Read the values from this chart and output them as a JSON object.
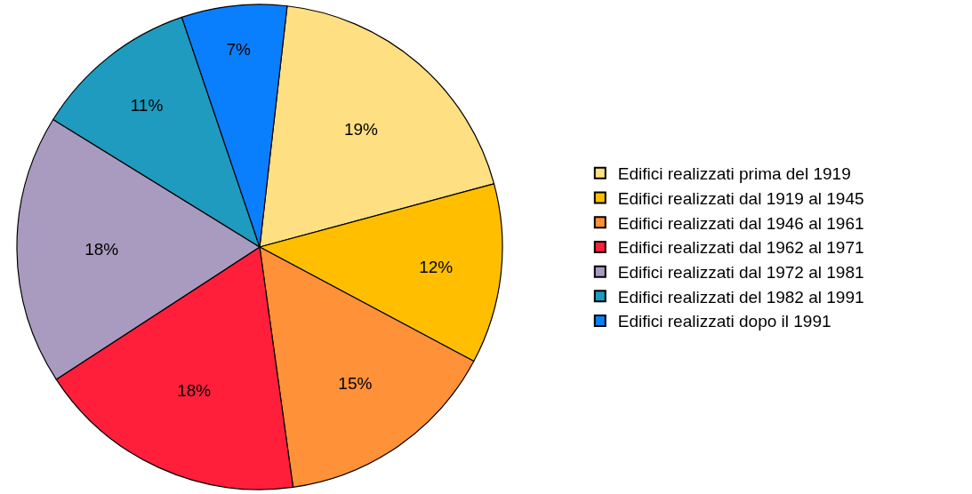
{
  "chart_data": {
    "type": "pie",
    "categories": [
      "Edifici realizzati prima del 1919",
      "Edifici realizzati dal 1919 al 1945",
      "Edifici realizzati dal 1946 al 1961",
      "Edifici realizzati dal 1962 al 1971",
      "Edifici realizzati dal 1972 al 1981",
      "Edifici realizzati del 1982 al 1991",
      "Edifici realizzati dopo il 1991"
    ],
    "values": [
      19,
      12,
      15,
      18,
      18,
      11,
      7
    ],
    "value_labels": [
      "19%",
      "12%",
      "15%",
      "18%",
      "18%",
      "11%",
      "7%"
    ],
    "colors": [
      "#fedf82",
      "#ffbf00",
      "#ff9138",
      "#ff1f3b",
      "#a89bbf",
      "#1e9bbf",
      "#0a7ffe"
    ],
    "legend": "right"
  }
}
